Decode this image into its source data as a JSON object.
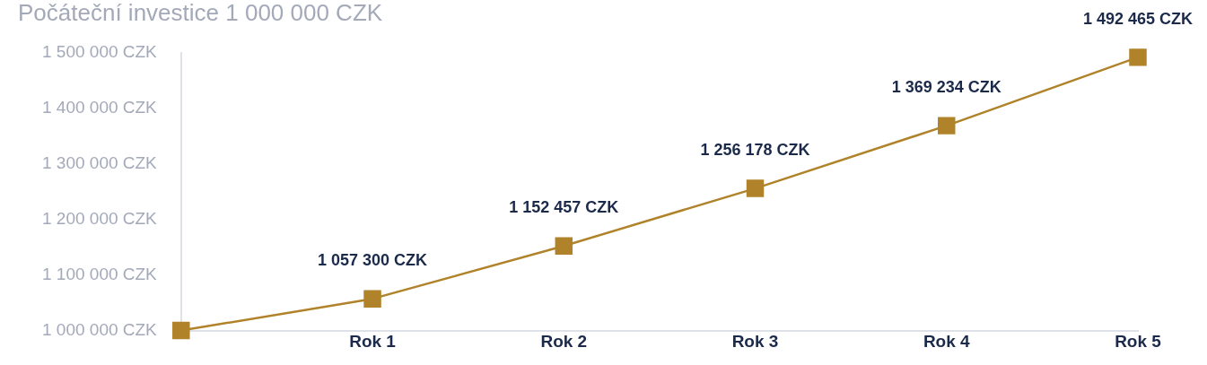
{
  "chart_data": {
    "type": "line",
    "title": "Počáteční investice 1 000 000 CZK",
    "categories": [
      null,
      "Rok 1",
      "Rok 2",
      "Rok 3",
      "Rok 4",
      "Rok 5"
    ],
    "values": [
      1000000,
      1057300,
      1152457,
      1256178,
      1369234,
      1492465
    ],
    "color": "#b0832a",
    "value_labels": [
      null,
      "1 057 300 CZK",
      "1 152 457 CZK",
      "1 256 178 CZK",
      "1 369 234 CZK",
      "1 492 465 CZK"
    ],
    "ylim": [
      1000000,
      1500000
    ],
    "yticks": [
      {
        "value": 1000000,
        "label": "1 000 000 CZK"
      },
      {
        "value": 1100000,
        "label": "1 100 000 CZK"
      },
      {
        "value": 1200000,
        "label": "1 200 000 CZK"
      },
      {
        "value": 1300000,
        "label": "1 300 000 CZK"
      },
      {
        "value": 1400000,
        "label": "1 400 000 CZK"
      },
      {
        "value": 1500000,
        "label": "1 500 000 CZK"
      }
    ],
    "grid": false,
    "legend": false,
    "marker": "square",
    "line_style": "solid"
  }
}
